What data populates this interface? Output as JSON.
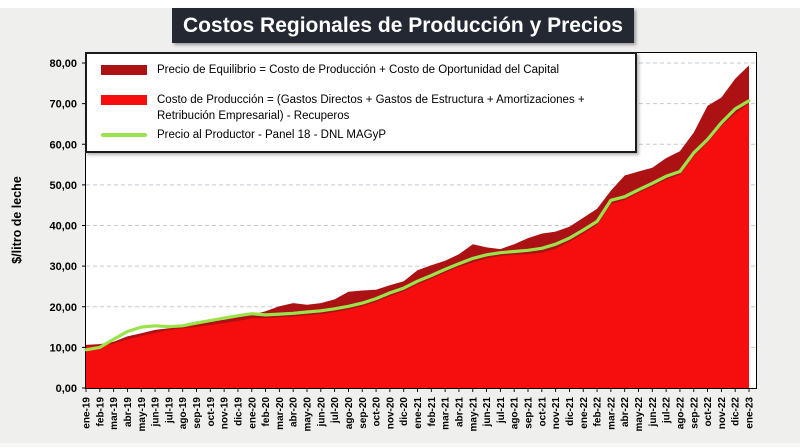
{
  "page": {
    "title": "Costos Regionales de Producción y Precios"
  },
  "chart_data": {
    "type": "area",
    "title": "Costos Regionales de Producción y Precios",
    "xlabel": "",
    "ylabel": "$/litro de leche",
    "ylim": [
      0,
      80
    ],
    "ytick_step": 10,
    "ytick_labels": [
      "0,00",
      "10,00",
      "20,00",
      "30,00",
      "40,00",
      "50,00",
      "60,00",
      "70,00",
      "80,00"
    ],
    "grid": true,
    "gridline_style": "dashed",
    "legend_position": "top-left",
    "categories": [
      "ene-19",
      "feb-19",
      "mar-19",
      "abr-19",
      "may-19",
      "jun-19",
      "jul-19",
      "ago-19",
      "sep-19",
      "oct-19",
      "nov-19",
      "dic-19",
      "ene-20",
      "feb-20",
      "mar-20",
      "abr-20",
      "may-20",
      "jun-20",
      "jul-20",
      "ago-20",
      "sep-20",
      "oct-20",
      "nov-20",
      "dic-20",
      "ene-21",
      "feb-21",
      "mar-21",
      "abr-21",
      "may-21",
      "jun-21",
      "jul-21",
      "ago-21",
      "sep-21",
      "oct-21",
      "nov-21",
      "dic-21",
      "ene-22",
      "feb-22",
      "mar-22",
      "abr-22",
      "may-22",
      "jun-22",
      "jul-22",
      "ago-22",
      "sep-22",
      "oct-22",
      "nov-22",
      "dic-22",
      "ene-23"
    ],
    "series": [
      {
        "name": "Precio de Equilibrio = Costo de Producción + Costo de Oportunidad del Capital",
        "type": "area",
        "color": "#AC1113",
        "values": [
          10.6,
          10.8,
          11.4,
          12.7,
          13.5,
          14.3,
          14.7,
          15.5,
          16.0,
          16.4,
          16.8,
          17.4,
          18.0,
          18.9,
          20.1,
          20.9,
          20.5,
          20.9,
          21.8,
          23.7,
          24.0,
          24.2,
          25.3,
          26.3,
          29.0,
          30.2,
          31.3,
          32.9,
          35.4,
          34.6,
          34.2,
          35.4,
          36.9,
          38.0,
          38.5,
          39.7,
          41.9,
          44.1,
          48.6,
          52.3,
          53.3,
          54.2,
          56.6,
          58.3,
          62.9,
          69.5,
          71.5,
          76.1,
          79.4
        ]
      },
      {
        "name": "Costo de Producción = (Gastos Directos + Gastos de Estructura + Amortizaciones + Retribución Empresarial) - Recuperos",
        "type": "area",
        "color": "#F60D0D",
        "values": [
          10.2,
          10.4,
          10.9,
          12.0,
          12.8,
          13.6,
          14.3,
          14.7,
          15.1,
          15.5,
          16.0,
          16.5,
          17.2,
          17.2,
          17.4,
          17.6,
          17.9,
          18.2,
          18.7,
          19.3,
          20.1,
          21.2,
          22.6,
          23.8,
          25.5,
          26.9,
          28.4,
          29.8,
          30.9,
          31.9,
          32.5,
          32.8,
          32.9,
          33.3,
          34.3,
          36.0,
          38.0,
          40.2,
          45.3,
          46.3,
          48.0,
          49.6,
          51.3,
          52.5,
          57.0,
          60.5,
          64.5,
          67.5,
          70.0
        ]
      },
      {
        "name": "Precio al Productor - Panel 18 - DNL MAGyP",
        "type": "line",
        "color": "#9BE34A",
        "values": [
          9.4,
          10.0,
          12.0,
          13.9,
          15.0,
          15.3,
          15.1,
          15.3,
          16.0,
          16.6,
          17.2,
          17.8,
          18.3,
          18.0,
          18.2,
          18.4,
          18.7,
          19.0,
          19.5,
          20.1,
          20.9,
          22.0,
          23.4,
          24.6,
          26.3,
          27.7,
          29.2,
          30.6,
          31.9,
          32.8,
          33.3,
          33.6,
          33.9,
          34.4,
          35.4,
          36.9,
          38.9,
          41.0,
          46.2,
          47.1,
          48.8,
          50.4,
          52.1,
          53.3,
          57.9,
          61.2,
          65.3,
          68.7,
          70.7
        ]
      }
    ]
  },
  "style": {
    "gridline_color": "#c1cbd3",
    "axis_color": "#000000",
    "titlebar_bg": "#232833",
    "page_bg": "#efefee"
  }
}
